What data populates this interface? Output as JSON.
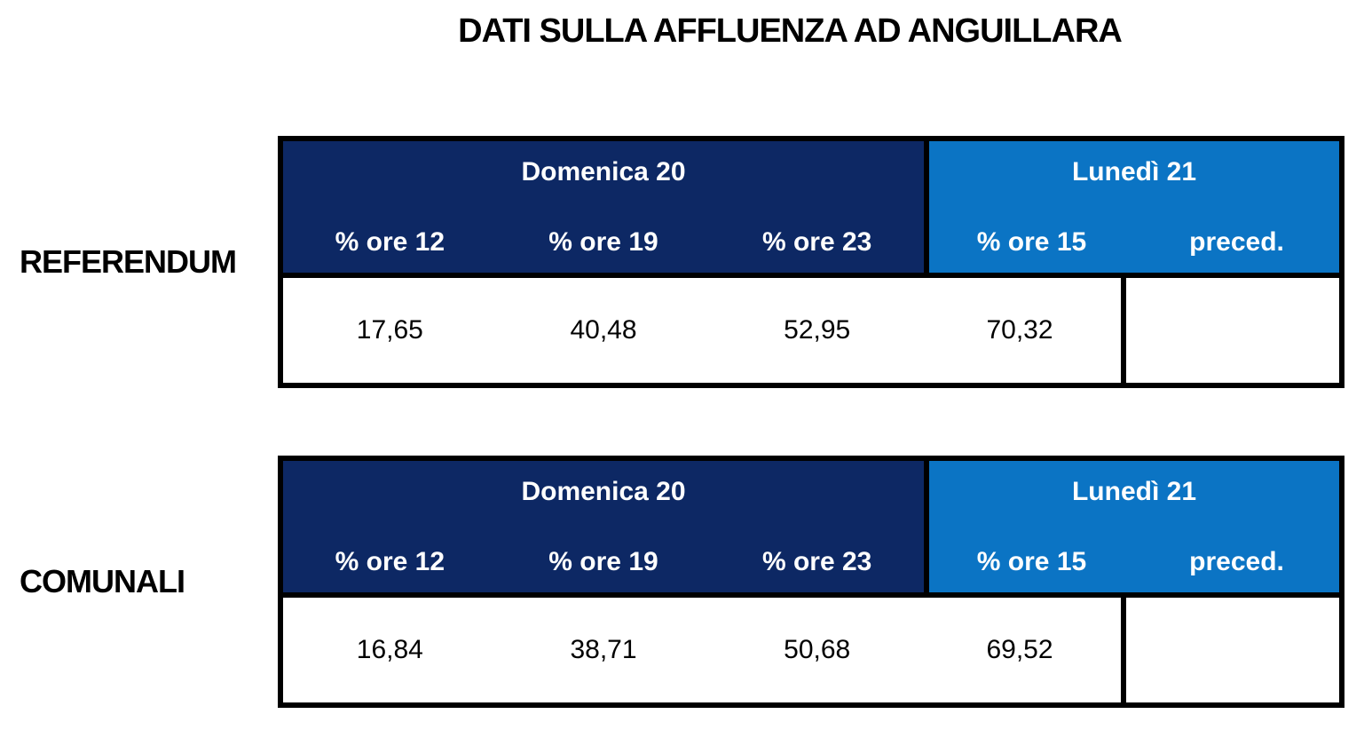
{
  "title": "DATI SULLA AFFLUENZA AD ANGUILLARA",
  "colors": {
    "dark_blue": "#0d2864",
    "light_blue": "#0b74c4",
    "border": "#000000",
    "header_text": "#ffffff",
    "body_text": "#000000"
  },
  "tables": [
    {
      "label": "REFERENDUM",
      "day_groups": [
        {
          "title": "Domenica 20",
          "columns": [
            "% ore 12",
            "% ore 19",
            "% ore 23"
          ]
        },
        {
          "title": "Lunedì 21",
          "columns": [
            "% ore 15",
            "preced."
          ]
        }
      ],
      "values": [
        "17,65",
        "40,48",
        "52,95",
        "70,32",
        ""
      ]
    },
    {
      "label": "COMUNALI",
      "day_groups": [
        {
          "title": "Domenica 20",
          "columns": [
            "% ore 12",
            "% ore 19",
            "% ore 23"
          ]
        },
        {
          "title": "Lunedì 21",
          "columns": [
            "% ore 15",
            "preced."
          ]
        }
      ],
      "values": [
        "16,84",
        "38,71",
        "50,68",
        "69,52",
        ""
      ]
    }
  ],
  "chart_data": [
    {
      "type": "table",
      "title": "REFERENDUM",
      "columns": [
        "% ore 12",
        "% ore 19",
        "% ore 23",
        "% ore 15",
        "preced."
      ],
      "rows": [
        [
          17.65,
          40.48,
          52.95,
          70.32,
          null
        ]
      ]
    },
    {
      "type": "table",
      "title": "COMUNALI",
      "columns": [
        "% ore 12",
        "% ore 19",
        "% ore 23",
        "% ore 15",
        "preced."
      ],
      "rows": [
        [
          16.84,
          38.71,
          50.68,
          69.52,
          null
        ]
      ]
    }
  ]
}
